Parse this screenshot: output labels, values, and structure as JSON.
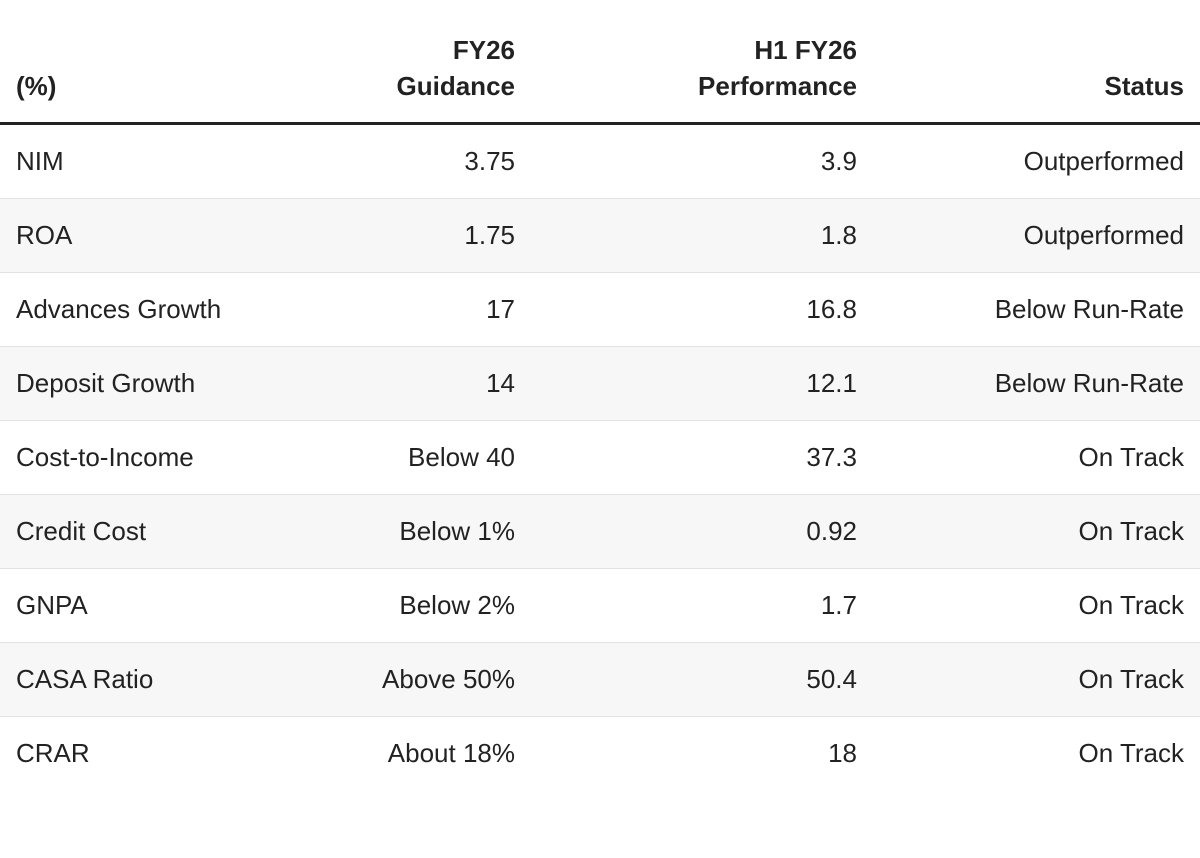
{
  "table": {
    "headers": [
      [
        "(%)"
      ],
      [
        "FY26",
        "Guidance"
      ],
      [
        "H1 FY26",
        "Performance"
      ],
      [
        "Status"
      ]
    ],
    "rows": [
      [
        "NIM",
        "3.75",
        "3.9",
        "Outperformed"
      ],
      [
        "ROA",
        "1.75",
        "1.8",
        "Outperformed"
      ],
      [
        "Advances Growth",
        "17",
        "16.8",
        "Below Run-Rate"
      ],
      [
        "Deposit Growth",
        "14",
        "12.1",
        "Below Run-Rate"
      ],
      [
        "Cost-to-Income",
        "Below 40",
        "37.3",
        "On Track"
      ],
      [
        "Credit Cost",
        "Below 1%",
        "0.92",
        "On Track"
      ],
      [
        "GNPA",
        "Below 2%",
        "1.7",
        "On Track"
      ],
      [
        "CASA Ratio",
        "Above 50%",
        "50.4",
        "On Track"
      ],
      [
        "CRAR",
        "About 18%",
        "18",
        "On Track"
      ]
    ]
  }
}
